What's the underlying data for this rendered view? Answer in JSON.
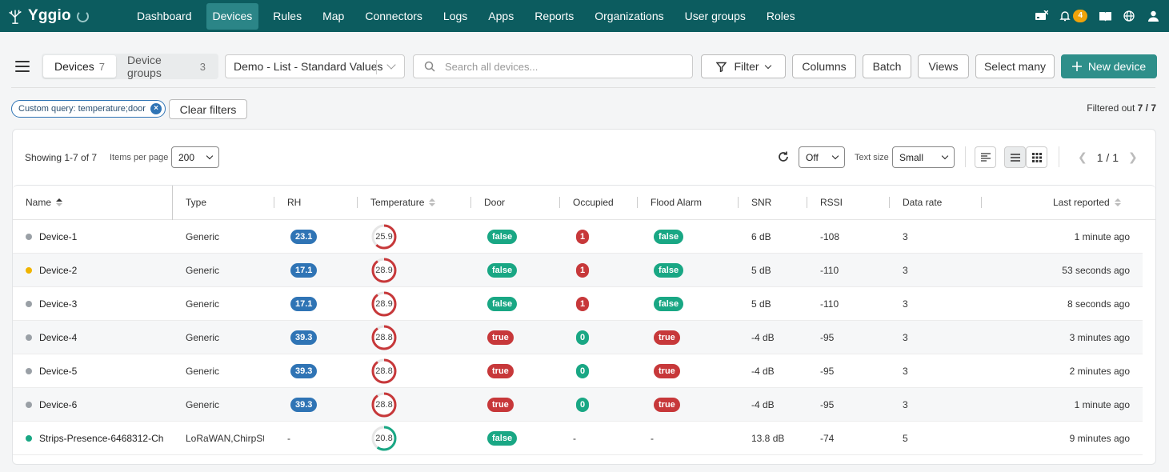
{
  "app": {
    "name": "Yggio"
  },
  "nav": {
    "links": [
      "Dashboard",
      "Devices",
      "Rules",
      "Map",
      "Connectors",
      "Logs",
      "Apps",
      "Reports",
      "Organizations",
      "User groups",
      "Roles"
    ],
    "active": "Devices",
    "notification_count": "4"
  },
  "toolbar": {
    "tabs": [
      {
        "label": "Devices",
        "count": "7"
      },
      {
        "label": "Device groups",
        "count": "3"
      }
    ],
    "view_select": "Demo - List - Standard Values",
    "search_placeholder": "Search all devices...",
    "filter_label": "Filter",
    "columns_label": "Columns",
    "batch_label": "Batch",
    "views_label": "Views",
    "select_many_label": "Select many",
    "new_device_label": "New device"
  },
  "filters": {
    "chip": "Custom query: temperature;door",
    "clear_label": "Clear filters",
    "filtered_prefix": "Filtered out",
    "filtered_value": "7 / 7"
  },
  "table_controls": {
    "showing": "Showing 1-7 of 7",
    "items_per_page_label": "Items per page",
    "items_per_page": "200",
    "auto_refresh": "Off",
    "text_size_label": "Text size",
    "text_size": "Small",
    "page": "1 / 1"
  },
  "columns": [
    "Name",
    "Type",
    "RH",
    "Temperature",
    "Door",
    "Occupied",
    "Flood Alarm",
    "SNR",
    "RSSI",
    "Data rate",
    "Last reported"
  ],
  "colors": {
    "nav_bg": "#0c5c5f",
    "accent": "#2e8f8a",
    "blue": "#2f74b5",
    "green": "#19a784",
    "red": "#c7383a",
    "status_gray": "#9aa0a6",
    "status_yellow": "#f0b400",
    "status_green": "#19a784"
  },
  "rows": [
    {
      "status": "gray",
      "name": "Device-1",
      "type": "Generic",
      "rh": "23.1",
      "temp": "25.9",
      "temp_level": 0.62,
      "temp_color": "red",
      "door": "false",
      "occupied": "1",
      "flood": "false",
      "snr": "6 dB",
      "rssi": "-108",
      "rate": "3",
      "last": "1 minute ago"
    },
    {
      "status": "yellow",
      "name": "Device-2",
      "type": "Generic",
      "rh": "17.1",
      "temp": "28.9",
      "temp_level": 0.9,
      "temp_color": "red",
      "door": "false",
      "occupied": "1",
      "flood": "false",
      "snr": "5 dB",
      "rssi": "-110",
      "rate": "3",
      "last": "53 seconds ago"
    },
    {
      "status": "gray",
      "name": "Device-3",
      "type": "Generic",
      "rh": "17.1",
      "temp": "28.9",
      "temp_level": 0.9,
      "temp_color": "red",
      "door": "false",
      "occupied": "1",
      "flood": "false",
      "snr": "5 dB",
      "rssi": "-110",
      "rate": "3",
      "last": "8 seconds ago"
    },
    {
      "status": "gray",
      "name": "Device-4",
      "type": "Generic",
      "rh": "39.3",
      "temp": "28.8",
      "temp_level": 0.9,
      "temp_color": "red",
      "door": "true",
      "occupied": "0",
      "flood": "true",
      "snr": "-4 dB",
      "rssi": "-95",
      "rate": "3",
      "last": "3 minutes ago"
    },
    {
      "status": "gray",
      "name": "Device-5",
      "type": "Generic",
      "rh": "39.3",
      "temp": "28.8",
      "temp_level": 0.9,
      "temp_color": "red",
      "door": "true",
      "occupied": "0",
      "flood": "true",
      "snr": "-4 dB",
      "rssi": "-95",
      "rate": "3",
      "last": "2 minutes ago"
    },
    {
      "status": "gray",
      "name": "Device-6",
      "type": "Generic",
      "rh": "39.3",
      "temp": "28.8",
      "temp_level": 0.9,
      "temp_color": "red",
      "door": "true",
      "occupied": "0",
      "flood": "true",
      "snr": "-4 dB",
      "rssi": "-95",
      "rate": "3",
      "last": "1 minute ago"
    },
    {
      "status": "green",
      "name": "Strips-Presence-6468312-Ch",
      "type": "LoRaWAN,ChirpSta",
      "rh": "-",
      "temp": "20.8",
      "temp_level": 0.6,
      "temp_color": "green",
      "door": "false",
      "occupied": "-",
      "flood": "-",
      "snr": "13.8 dB",
      "rssi": "-74",
      "rate": "5",
      "last": "9 minutes ago"
    }
  ]
}
